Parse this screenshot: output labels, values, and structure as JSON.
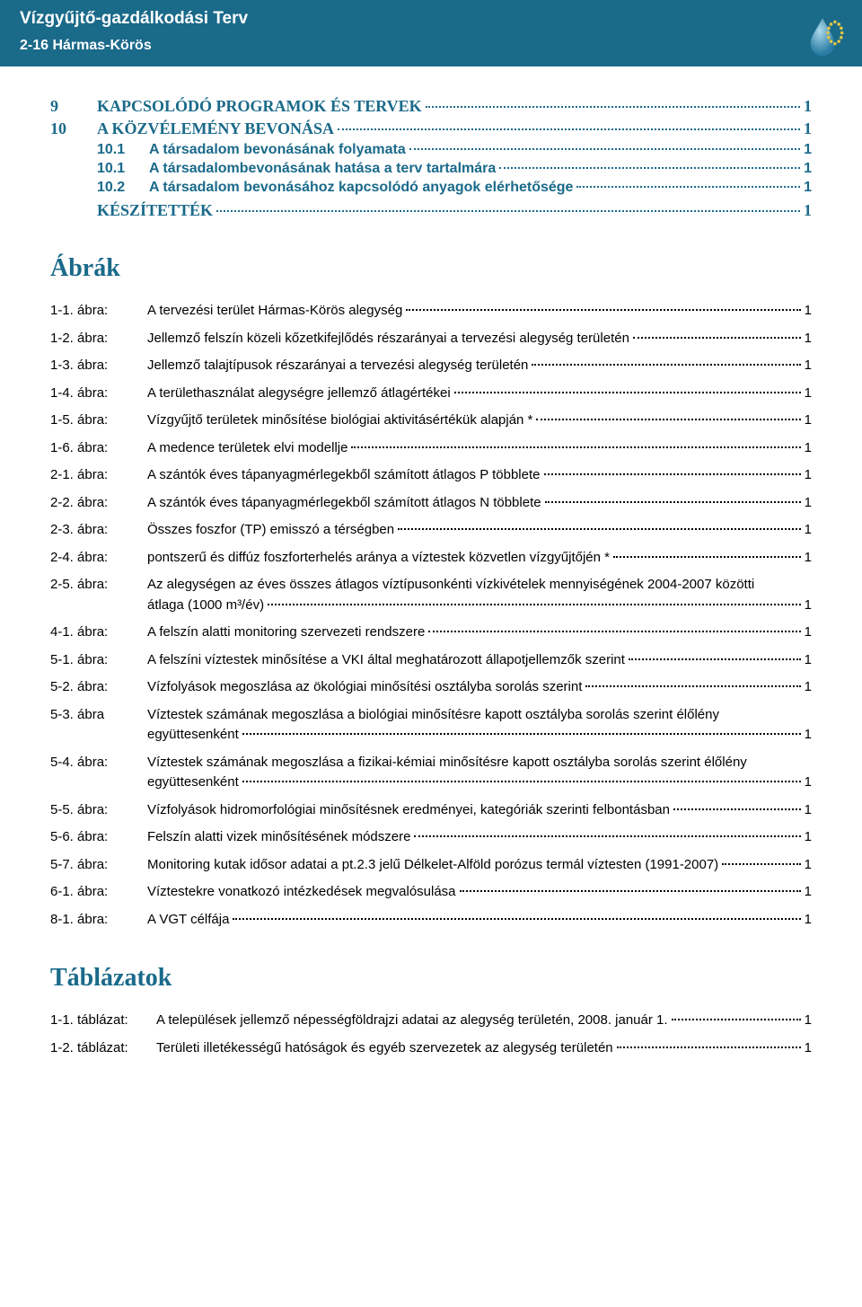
{
  "colors": {
    "header_bg": "#1a6a8a",
    "header_text": "#ffffff",
    "heading_blue": "#1a6a8a",
    "body_text": "#000000",
    "page_bg": "#ffffff",
    "star_color": "#f4d03f"
  },
  "header": {
    "title": "Vízgyűjtő-gazdálkodási Terv",
    "subtitle": "2-16 Hármas-Körös"
  },
  "toc_main": [
    {
      "num": "9",
      "title": "KAPCSOLÓDÓ PROGRAMOK ÉS TERVEK",
      "page": "1",
      "children": []
    },
    {
      "num": "10",
      "title": "A KÖZVÉLEMÉNY BEVONÁSA",
      "page": "1",
      "children": [
        {
          "num": "10.1",
          "title": "A társadalom bevonásának folyamata",
          "page": "1"
        },
        {
          "num": "10.1",
          "title": "A társadalombevonásának hatása a terv tartalmára",
          "page": "1"
        },
        {
          "num": "10.2",
          "title": "A társadalom bevonásához kapcsolódó anyagok elérhetősége",
          "page": "1"
        }
      ]
    },
    {
      "num": "",
      "title": "KÉSZÍTETTÉK",
      "page": "1",
      "children": []
    }
  ],
  "figures_heading": "Ábrák",
  "figures": [
    {
      "label": "1-1. ábra:",
      "title": "A tervezési terület Hármas-Körös alegység",
      "page": "1"
    },
    {
      "label": "1-2. ábra:",
      "title": "Jellemző felszín közeli kőzetkifejlődés részarányai a tervezési alegység területén",
      "page": "1"
    },
    {
      "label": "1-3. ábra:",
      "title": "Jellemző talajtípusok részarányai a tervezési alegység területén",
      "page": "1"
    },
    {
      "label": "1-4. ábra:",
      "title": "A területhasználat alegységre jellemző átlagértékei",
      "page": "1"
    },
    {
      "label": "1-5. ábra:",
      "title": "Vízgyűjtő területek minősítése biológiai aktivitásértékük alapján *",
      "page": "1"
    },
    {
      "label": "1-6. ábra:",
      "title": "A medence területek elvi modellje",
      "page": "1"
    },
    {
      "label": "2-1. ábra:",
      "title": "A szántók éves tápanyagmérlegekből számított átlagos P többlete",
      "page": "1"
    },
    {
      "label": "2-2. ábra:",
      "title": "A szántók éves tápanyagmérlegekből számított átlagos N többlete",
      "page": "1"
    },
    {
      "label": "2-3. ábra:",
      "title": "Összes foszfor (TP) emisszó a térségben",
      "page": "1"
    },
    {
      "label": "2-4. ábra:",
      "title": "pontszerű és diffúz foszforterhelés aránya a víztestek közvetlen vízgyűjtőjén *",
      "page": "1"
    },
    {
      "label": "2-5. ábra:",
      "title_lines": [
        "Az alegységen az éves összes átlagos víztípusonkénti vízkivételek mennyiségének 2004-2007 közötti",
        "átlaga (1000 m³/év)"
      ],
      "page": "1"
    },
    {
      "label": "4-1. ábra:",
      "title": "A felszín alatti monitoring szervezeti rendszere",
      "page": "1"
    },
    {
      "label": "5-1. ábra:",
      "title": "A felszíni víztestek minősítése a VKI által meghatározott állapotjellemzők szerint",
      "page": "1"
    },
    {
      "label": "5-2. ábra:",
      "title": "Vízfolyások megoszlása az ökológiai minősítési osztályba sorolás szerint",
      "page": "1"
    },
    {
      "label": "5-3. ábra",
      "title_lines": [
        "Víztestek számának megoszlása a biológiai minősítésre kapott osztályba sorolás szerint élőlény",
        "együttesenként"
      ],
      "page": "1"
    },
    {
      "label": "5-4. ábra:",
      "title_lines": [
        "Víztestek számának megoszlása a fizikai-kémiai minősítésre kapott osztályba sorolás szerint élőlény",
        "együttesenként"
      ],
      "page": "1"
    },
    {
      "label": "5-5. ábra:",
      "title": "Vízfolyások hidromorfológiai minősítésnek eredményei, kategóriák szerinti felbontásban",
      "page": "1"
    },
    {
      "label": "5-6. ábra:",
      "title": "Felszín alatti vizek minősítésének módszere",
      "page": "1"
    },
    {
      "label": "5-7. ábra:",
      "title": "Monitoring kutak idősor adatai a pt.2.3 jelű Délkelet-Alföld porózus termál víztesten (1991-2007)",
      "page": "1"
    },
    {
      "label": "6-1. ábra:",
      "title": "Víztestekre vonatkozó intézkedések megvalósulása",
      "page": "1"
    },
    {
      "label": "8-1. ábra:",
      "title": "A VGT célfája",
      "page": "1"
    }
  ],
  "tables_heading": "Táblázatok",
  "tables": [
    {
      "label": "1-1. táblázat:",
      "title": "A települések jellemző népességföldrajzi adatai az alegység területén, 2008. január 1.",
      "page": "1"
    },
    {
      "label": "1-2. táblázat:",
      "title": "Területi illetékességű hatóságok és egyéb szervezetek az alegység területén",
      "page": "1"
    }
  ]
}
